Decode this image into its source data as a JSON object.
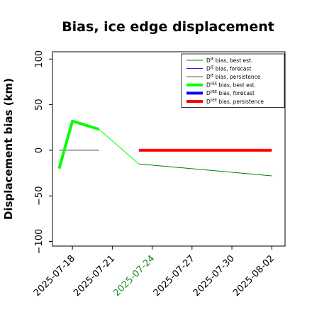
{
  "chart_data": {
    "type": "line",
    "title": "Bias, ice edge displacement",
    "ylabel": "Displacement bias (km)",
    "xlabel": "",
    "xlim": [
      "2025-07-16T12:00",
      "2025-08-03T00:00"
    ],
    "ylim": [
      -105,
      108
    ],
    "yticks": [
      {
        "value": -100,
        "label": "−100"
      },
      {
        "value": -50,
        "label": "−50"
      },
      {
        "value": 0,
        "label": "0"
      },
      {
        "value": 50,
        "label": "50"
      },
      {
        "value": 100,
        "label": "100"
      }
    ],
    "xticks": [
      {
        "value": "2025-07-18",
        "label": "2025-07-18",
        "color": "#000000"
      },
      {
        "value": "2025-07-21",
        "label": "2025-07-21",
        "color": "#000000"
      },
      {
        "value": "2025-07-24",
        "label": "2025-07-24",
        "color": "#228b22"
      },
      {
        "value": "2025-07-27",
        "label": "2025-07-27",
        "color": "#000000"
      },
      {
        "value": "2025-07-30",
        "label": "2025-07-30",
        "color": "#000000"
      },
      {
        "value": "2025-08-02",
        "label": "2025-08-02",
        "color": "#000000"
      }
    ],
    "legend_position": "top-right",
    "series": [
      {
        "name": "D bias, best est.",
        "sup": "IE",
        "color": "#008000",
        "width": "thin",
        "x": [
          "2025-07-23",
          "2025-08-02"
        ],
        "y": [
          -15,
          -28
        ]
      },
      {
        "name": "D bias, forecast",
        "sup": "IE",
        "color": "#0000ff",
        "width": "thin",
        "x": [],
        "y": []
      },
      {
        "name": "D bias, persistence",
        "sup": "IE",
        "color": "#444444",
        "width": "thin",
        "x": [
          "2025-07-17",
          "2025-07-20"
        ],
        "y": [
          0,
          0
        ]
      },
      {
        "name": "D bias, best est.",
        "sup": "IIEE",
        "color": "#00ff00",
        "width": "thick",
        "x": [
          "2025-07-17",
          "2025-07-18",
          "2025-07-20"
        ],
        "y": [
          -20,
          32,
          23
        ]
      },
      {
        "name": "D bias, forecast",
        "sup": "IIEE",
        "color": "#0000ff",
        "width": "thick",
        "x": [],
        "y": []
      },
      {
        "name": "D bias, persistence",
        "sup": "IIEE",
        "color": "#ff0000",
        "width": "thick",
        "x": [
          "2025-07-23",
          "2025-08-02"
        ],
        "y": [
          0,
          0
        ]
      }
    ],
    "connectors": [
      {
        "color": "#00ff00",
        "width": "thin",
        "x": [
          "2025-07-20",
          "2025-07-23"
        ],
        "y": [
          23,
          -15
        ]
      }
    ]
  }
}
